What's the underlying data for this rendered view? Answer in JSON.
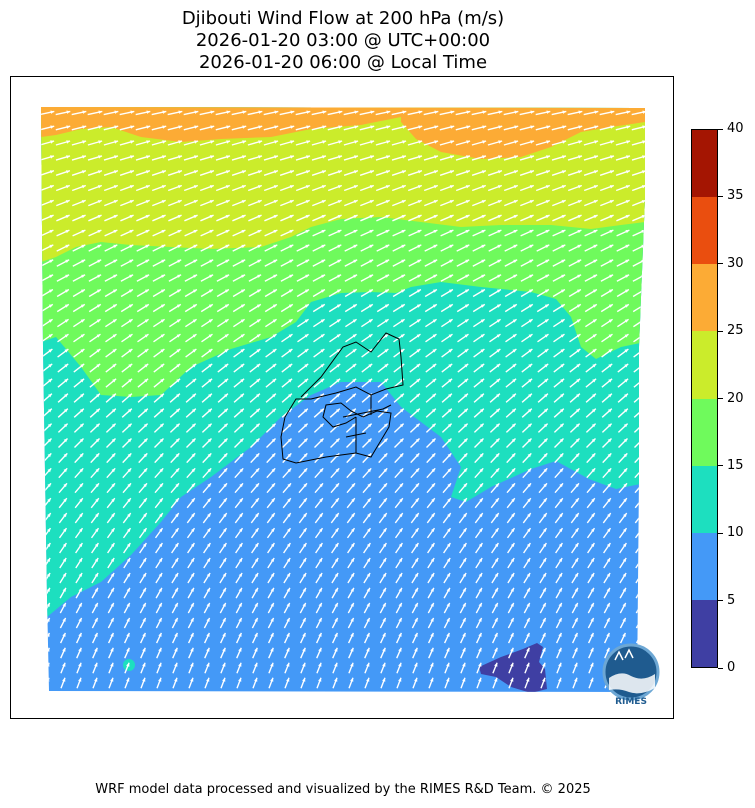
{
  "header": {
    "title_line1": "Djibouti Wind Flow at 200 hPa (m/s)",
    "title_line2": "2026-01-20 03:00 @ UTC+00:00",
    "title_line3": "2026-01-20 06:00 @ Local Time"
  },
  "colorbar": {
    "ticks": [
      "0",
      "5",
      "10",
      "15",
      "20",
      "25",
      "30",
      "35",
      "40"
    ],
    "colors": [
      "#3f3fa3",
      "#4499f7",
      "#1ddfbf",
      "#6ffa5c",
      "#cbec2b",
      "#fcab35",
      "#ea4e0f",
      "#a41502"
    ]
  },
  "map": {
    "contour_colors": {
      "c0_5": "#3f3fa3",
      "c5_10": "#4499f7",
      "c10_15": "#1ddfbf",
      "c15_20": "#6ffa5c",
      "c20_25": "#cbec2b",
      "c25_30": "#fcab35"
    },
    "arrow_color": "#ffffff",
    "border_color": "#000000"
  },
  "logo": {
    "text": "RIMES"
  },
  "footer": {
    "credit": "WRF model data processed and visualized by the RIMES R&D Team. © 2025"
  }
}
